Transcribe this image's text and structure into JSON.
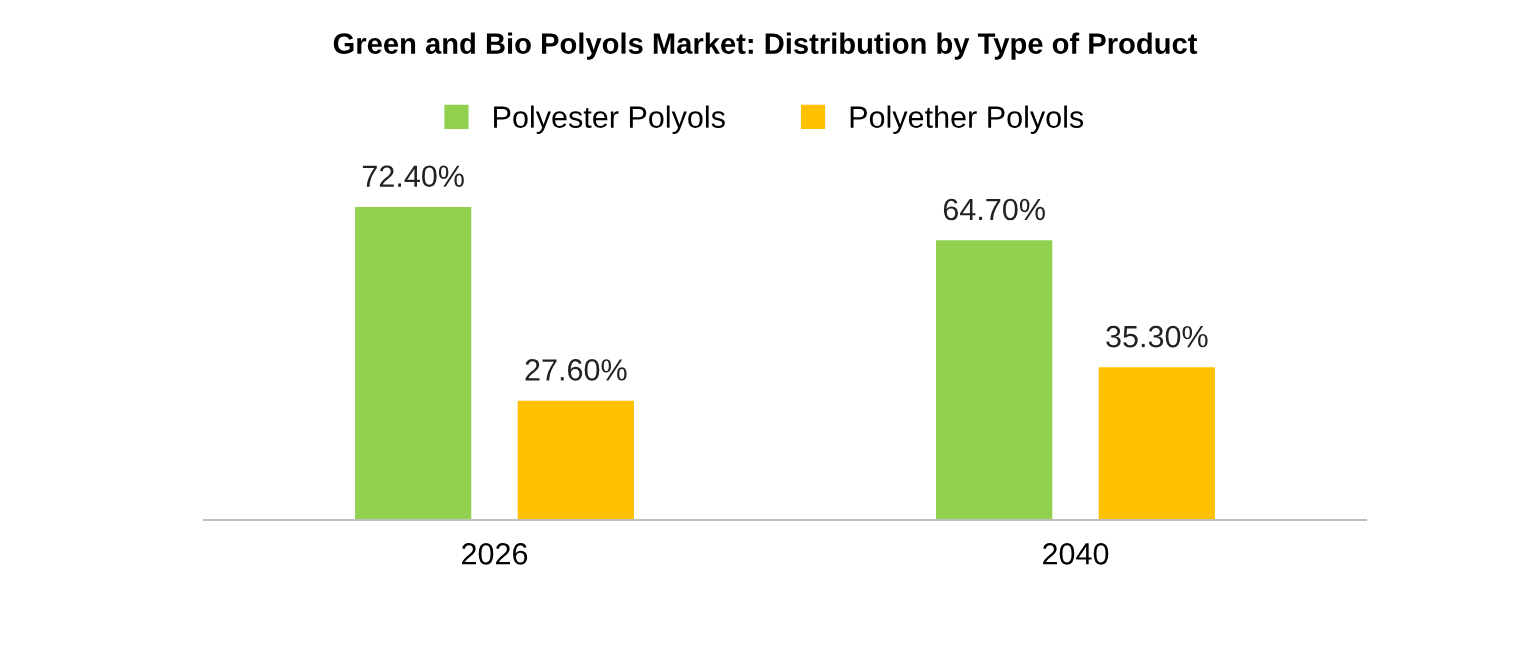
{
  "chart_data": {
    "type": "bar",
    "title": "Green and Bio Polyols Market: Distribution by Type of Product",
    "categories": [
      "2026",
      "2040"
    ],
    "series": [
      {
        "name": "Polyester Polyols",
        "color": "#92d050",
        "values": [
          72.4,
          64.7
        ],
        "value_labels": [
          "72.40%",
          "64.70%"
        ]
      },
      {
        "name": "Polyether Polyols",
        "color": "#ffc000",
        "values": [
          27.6,
          35.3
        ],
        "value_labels": [
          "27.60%",
          "35.30%"
        ]
      }
    ],
    "legend": "top",
    "grid": false
  }
}
